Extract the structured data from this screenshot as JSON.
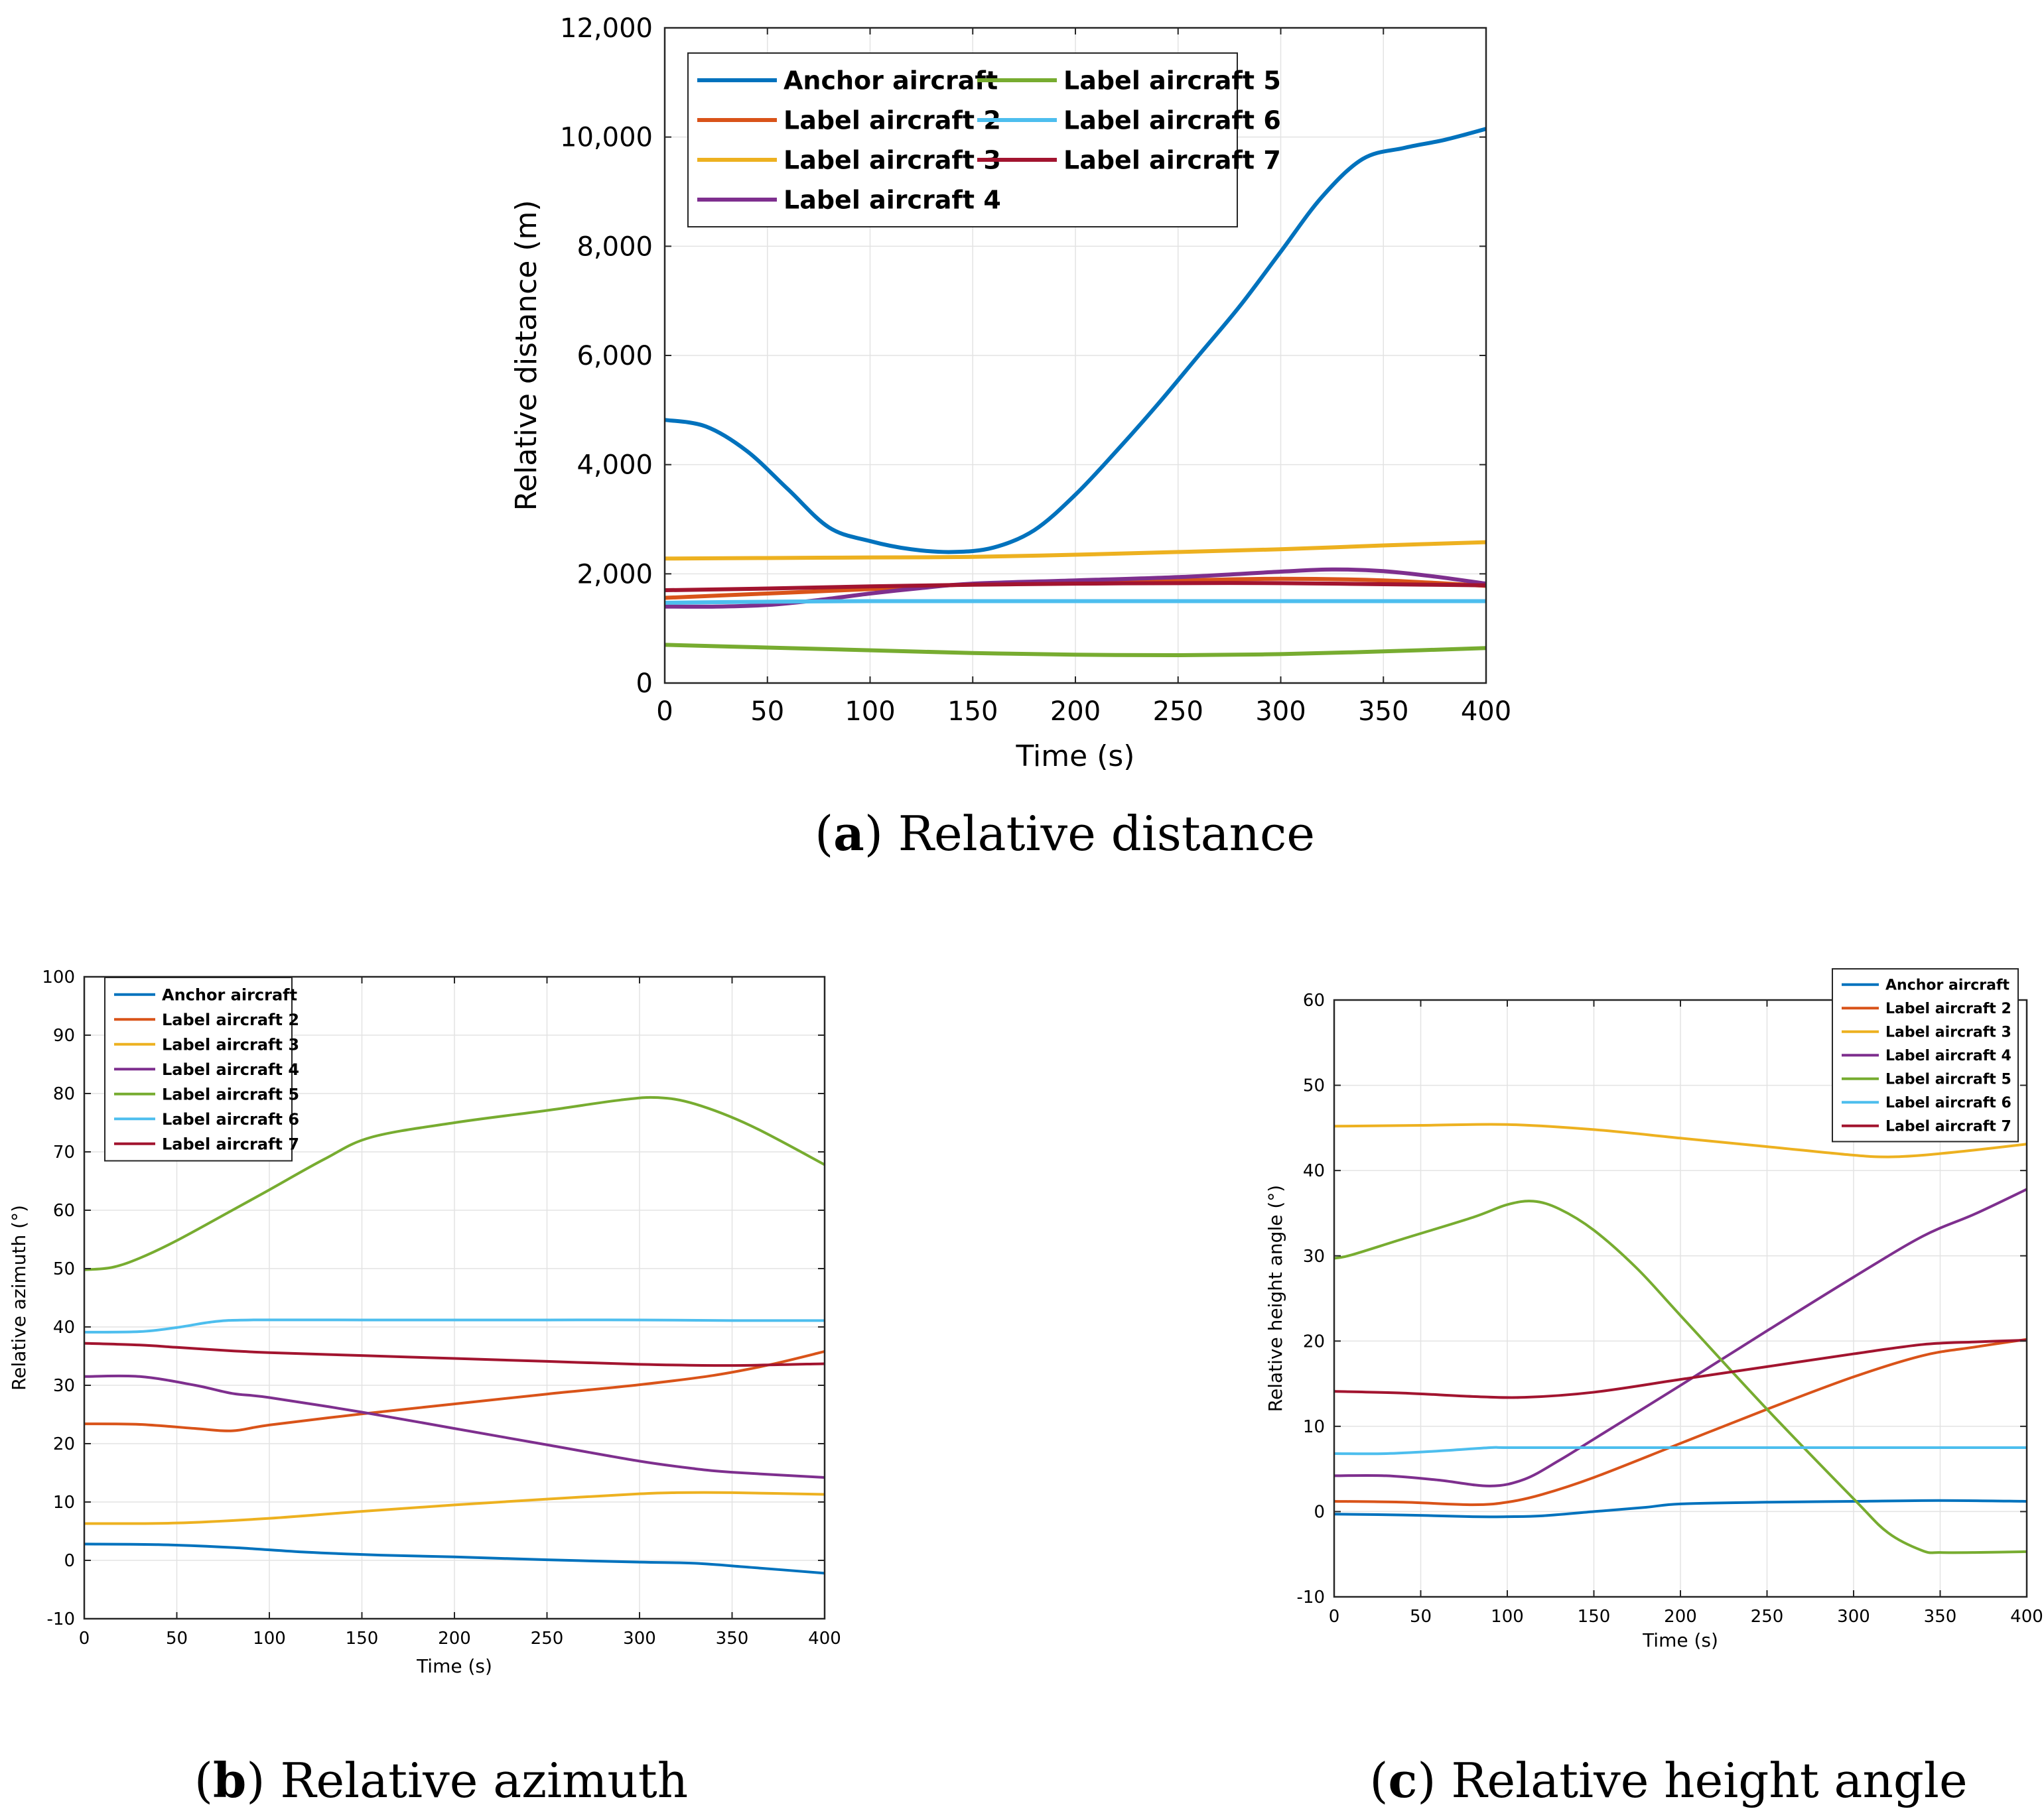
{
  "palette": {
    "anchor": "#0072BD",
    "label2": "#D95319",
    "label3": "#EDB120",
    "label4": "#7E2F8E",
    "label5": "#77AC30",
    "label6": "#4DBEEE",
    "label7": "#A2142F"
  },
  "captions": [
    {
      "letter": "a",
      "text": "Relative distance"
    },
    {
      "letter": "b",
      "text": "Relative azimuth"
    },
    {
      "letter": "c",
      "text": "Relative height angle"
    }
  ],
  "chart_data": [
    {
      "id": "a",
      "type": "line",
      "xlabel": "Time (s)",
      "ylabel": "Relative distance (m)",
      "xlim": [
        0,
        400
      ],
      "ylim": [
        0,
        12000
      ],
      "xticks": [
        0,
        50,
        100,
        150,
        200,
        250,
        300,
        350,
        400
      ],
      "yticks": [
        0,
        2000,
        4000,
        6000,
        8000,
        10000,
        12000
      ],
      "ytick_labels": [
        "0",
        "2,000",
        "4,000",
        "6,000",
        "8,000",
        "10,000",
        "12,000"
      ],
      "grid": true,
      "legend": "top-left, two columns",
      "series": [
        {
          "name": "Anchor aircraft",
          "color": "anchor",
          "x": [
            0,
            20,
            40,
            60,
            80,
            100,
            120,
            140,
            160,
            180,
            200,
            220,
            240,
            260,
            280,
            300,
            320,
            340,
            360,
            380,
            400
          ],
          "y": [
            4820,
            4700,
            4250,
            3550,
            2850,
            2600,
            2450,
            2400,
            2480,
            2800,
            3450,
            4250,
            5100,
            6000,
            6900,
            7900,
            8900,
            9600,
            9800,
            9950,
            10150
          ]
        },
        {
          "name": "Label aircraft 2",
          "color": "label2",
          "x": [
            0,
            50,
            100,
            150,
            200,
            250,
            300,
            350,
            400
          ],
          "y": [
            1560,
            1640,
            1720,
            1810,
            1850,
            1880,
            1910,
            1880,
            1780
          ]
        },
        {
          "name": "Label aircraft 3",
          "color": "label3",
          "x": [
            0,
            50,
            100,
            150,
            200,
            250,
            300,
            350,
            400
          ],
          "y": [
            2280,
            2290,
            2300,
            2310,
            2350,
            2400,
            2450,
            2520,
            2580
          ]
        },
        {
          "name": "Label aircraft 4",
          "color": "label4",
          "x": [
            0,
            25,
            50,
            75,
            100,
            125,
            150,
            200,
            250,
            300,
            325,
            350,
            375,
            400
          ],
          "y": [
            1400,
            1400,
            1430,
            1520,
            1640,
            1740,
            1820,
            1880,
            1940,
            2040,
            2080,
            2050,
            1950,
            1820
          ]
        },
        {
          "name": "Label aircraft 5",
          "color": "label5",
          "x": [
            0,
            50,
            100,
            150,
            200,
            250,
            300,
            350,
            400
          ],
          "y": [
            700,
            650,
            600,
            550,
            520,
            510,
            530,
            580,
            640
          ]
        },
        {
          "name": "Label aircraft 6",
          "color": "label6",
          "x": [
            0,
            50,
            100,
            150,
            200,
            250,
            300,
            350,
            400
          ],
          "y": [
            1470,
            1490,
            1500,
            1500,
            1500,
            1500,
            1500,
            1500,
            1500
          ]
        },
        {
          "name": "Label aircraft 7",
          "color": "label7",
          "x": [
            0,
            50,
            100,
            150,
            200,
            250,
            300,
            350,
            400
          ],
          "y": [
            1700,
            1730,
            1770,
            1800,
            1820,
            1830,
            1830,
            1810,
            1790
          ]
        }
      ]
    },
    {
      "id": "b",
      "type": "line",
      "xlabel": "Time  (s)",
      "ylabel": "Relative azimuth  (°)",
      "xlim": [
        0,
        400
      ],
      "ylim": [
        -10,
        100
      ],
      "xticks": [
        0,
        50,
        100,
        150,
        200,
        250,
        300,
        350,
        400
      ],
      "yticks": [
        -10,
        0,
        10,
        20,
        30,
        40,
        50,
        60,
        70,
        80,
        90,
        100
      ],
      "grid": true,
      "legend": "top-left",
      "series": [
        {
          "name": "Anchor aircraft",
          "color": "anchor",
          "x": [
            0,
            40,
            80,
            120,
            160,
            200,
            250,
            300,
            330,
            360,
            400
          ],
          "y": [
            2.8,
            2.7,
            2.2,
            1.4,
            0.9,
            0.6,
            0.1,
            -0.3,
            -0.5,
            -1.2,
            -2.2
          ]
        },
        {
          "name": "Label aircraft 2",
          "color": "label2",
          "x": [
            0,
            30,
            60,
            80,
            100,
            150,
            200,
            250,
            300,
            340,
            370,
            400
          ],
          "y": [
            23.4,
            23.3,
            22.6,
            22.2,
            23.2,
            25.1,
            26.8,
            28.5,
            30.1,
            31.7,
            33.5,
            35.8
          ]
        },
        {
          "name": "Label aircraft 3",
          "color": "label3",
          "x": [
            0,
            50,
            100,
            150,
            200,
            250,
            300,
            320,
            350,
            400
          ],
          "y": [
            6.3,
            6.4,
            7.2,
            8.4,
            9.5,
            10.5,
            11.4,
            11.6,
            11.6,
            11.3
          ]
        },
        {
          "name": "Label aircraft 4",
          "color": "label4",
          "x": [
            0,
            30,
            60,
            80,
            100,
            150,
            200,
            250,
            300,
            330,
            350,
            400
          ],
          "y": [
            31.5,
            31.5,
            30.0,
            28.6,
            27.9,
            25.4,
            22.6,
            19.8,
            17.0,
            15.7,
            15.1,
            14.2
          ]
        },
        {
          "name": "Label aircraft 5",
          "color": "label5",
          "x": [
            0,
            15,
            30,
            50,
            80,
            100,
            130,
            155,
            200,
            250,
            290,
            310,
            330,
            360,
            400
          ],
          "y": [
            49.8,
            50.2,
            51.8,
            54.8,
            60.0,
            63.5,
            68.8,
            72.5,
            75.0,
            77.1,
            78.9,
            79.3,
            78.2,
            74.5,
            67.8
          ]
        },
        {
          "name": "Label aircraft 6",
          "color": "label6",
          "x": [
            0,
            30,
            50,
            70,
            90,
            150,
            200,
            250,
            300,
            350,
            400
          ],
          "y": [
            39.1,
            39.2,
            39.9,
            40.9,
            41.2,
            41.2,
            41.2,
            41.2,
            41.2,
            41.1,
            41.1
          ]
        },
        {
          "name": "Label aircraft 7",
          "color": "label7",
          "x": [
            0,
            30,
            50,
            80,
            100,
            150,
            200,
            250,
            300,
            350,
            400
          ],
          "y": [
            37.2,
            36.9,
            36.5,
            35.9,
            35.6,
            35.1,
            34.6,
            34.1,
            33.6,
            33.4,
            33.7
          ]
        }
      ]
    },
    {
      "id": "c",
      "type": "line",
      "xlabel": "Time  (s)",
      "ylabel": "Relative height angle  (°)",
      "xlim": [
        0,
        400
      ],
      "ylim": [
        -10,
        60
      ],
      "xticks": [
        0,
        50,
        100,
        150,
        200,
        250,
        300,
        350,
        400
      ],
      "yticks": [
        -10,
        0,
        10,
        20,
        30,
        40,
        50,
        60
      ],
      "grid": true,
      "legend": "top-right",
      "series": [
        {
          "name": "Anchor aircraft",
          "color": "anchor",
          "x": [
            0,
            40,
            80,
            100,
            120,
            150,
            180,
            200,
            250,
            300,
            350,
            400
          ],
          "y": [
            -0.3,
            -0.4,
            -0.6,
            -0.6,
            -0.5,
            0.0,
            0.5,
            0.9,
            1.1,
            1.2,
            1.3,
            1.2
          ]
        },
        {
          "name": "Label aircraft 2",
          "color": "label2",
          "x": [
            0,
            40,
            80,
            100,
            120,
            150,
            200,
            250,
            300,
            340,
            370,
            400
          ],
          "y": [
            1.2,
            1.1,
            0.8,
            1.1,
            2.0,
            4.0,
            8.0,
            12.0,
            15.8,
            18.3,
            19.3,
            20.2
          ]
        },
        {
          "name": "Label aircraft 3",
          "color": "label3",
          "x": [
            0,
            50,
            100,
            150,
            200,
            250,
            300,
            320,
            340,
            370,
            400
          ],
          "y": [
            45.2,
            45.3,
            45.4,
            44.8,
            43.8,
            42.8,
            41.8,
            41.6,
            41.8,
            42.4,
            43.1
          ]
        },
        {
          "name": "Label aircraft 4",
          "color": "label4",
          "x": [
            0,
            30,
            60,
            90,
            110,
            130,
            150,
            200,
            250,
            300,
            340,
            370,
            400
          ],
          "y": [
            4.2,
            4.2,
            3.7,
            3.0,
            3.8,
            6.0,
            8.5,
            14.8,
            21.2,
            27.5,
            32.3,
            34.9,
            37.8
          ]
        },
        {
          "name": "Label aircraft 5",
          "color": "label5",
          "x": [
            0,
            10,
            40,
            80,
            100,
            115,
            130,
            150,
            175,
            200,
            250,
            300,
            320,
            340,
            350,
            370,
            400
          ],
          "y": [
            29.7,
            30.1,
            32.0,
            34.5,
            36.0,
            36.4,
            35.5,
            33.0,
            28.5,
            23.0,
            12.0,
            1.5,
            -2.5,
            -4.6,
            -4.8,
            -4.8,
            -4.7
          ]
        },
        {
          "name": "Label aircraft 6",
          "color": "label6",
          "x": [
            0,
            30,
            60,
            90,
            100,
            150,
            200,
            250,
            300,
            350,
            400
          ],
          "y": [
            6.8,
            6.8,
            7.1,
            7.5,
            7.5,
            7.5,
            7.5,
            7.5,
            7.5,
            7.5,
            7.5
          ]
        },
        {
          "name": "Label aircraft 7",
          "color": "label7",
          "x": [
            0,
            40,
            80,
            110,
            150,
            200,
            250,
            300,
            340,
            370,
            400
          ],
          "y": [
            14.1,
            13.9,
            13.5,
            13.4,
            14.0,
            15.5,
            17.0,
            18.5,
            19.6,
            19.9,
            20.1
          ]
        }
      ]
    }
  ]
}
